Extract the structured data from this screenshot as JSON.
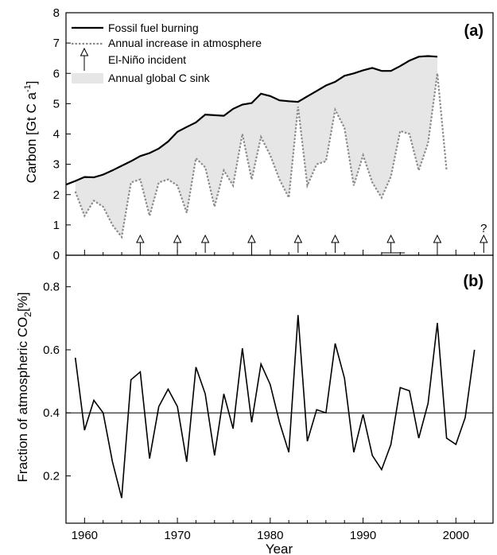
{
  "chart_data": [
    {
      "panel": "(a)",
      "type": "line",
      "ylabel_main": "Carbon [Gt C a",
      "ylabel_sup": "-1",
      "ylabel_end": "]",
      "xlim": [
        1958,
        2004
      ],
      "ylim": [
        0,
        8
      ],
      "yticks": [
        "0",
        "1",
        "2",
        "3",
        "4",
        "5",
        "6",
        "7",
        "8"
      ],
      "grid": false,
      "legend_position": "top-left",
      "legend": {
        "fossil": "Fossil fuel burning",
        "annual": "Annual increase in atmosphere",
        "elnino": "El-Niño incident",
        "sink": "Annual global C sink"
      },
      "colors": {
        "fossil": "#000000",
        "annual": "#8c8c8c",
        "sink": "#e6e6e6"
      },
      "series": [
        {
          "name": "Fossil fuel burning",
          "x": [
            1958,
            1959,
            1960,
            1961,
            1962,
            1963,
            1964,
            1965,
            1966,
            1967,
            1968,
            1969,
            1970,
            1971,
            1972,
            1973,
            1974,
            1975,
            1976,
            1977,
            1978,
            1979,
            1980,
            1981,
            1982,
            1983,
            1984,
            1985,
            1986,
            1987,
            1988,
            1989,
            1990,
            1991,
            1992,
            1993,
            1994,
            1995,
            1996,
            1997,
            1998
          ],
          "y": [
            2.33,
            2.45,
            2.58,
            2.57,
            2.66,
            2.8,
            2.95,
            3.1,
            3.27,
            3.37,
            3.52,
            3.75,
            4.07,
            4.23,
            4.38,
            4.64,
            4.62,
            4.6,
            4.83,
            4.97,
            5.02,
            5.33,
            5.25,
            5.11,
            5.08,
            5.06,
            5.24,
            5.42,
            5.6,
            5.72,
            5.92,
            6.0,
            6.1,
            6.18,
            6.08,
            6.08,
            6.24,
            6.42,
            6.55,
            6.57,
            6.55
          ]
        },
        {
          "name": "Annual increase in atmosphere",
          "x": [
            1959,
            1960,
            1961,
            1962,
            1963,
            1964,
            1965,
            1966,
            1967,
            1968,
            1969,
            1970,
            1971,
            1972,
            1973,
            1974,
            1975,
            1976,
            1977,
            1978,
            1979,
            1980,
            1981,
            1982,
            1983,
            1984,
            1985,
            1986,
            1987,
            1988,
            1989,
            1990,
            1991,
            1992,
            1993,
            1994,
            1995,
            1996,
            1997,
            1998,
            1999
          ],
          "y": [
            2.1,
            1.3,
            1.8,
            1.6,
            1.0,
            0.6,
            2.4,
            2.5,
            1.3,
            2.4,
            2.5,
            2.3,
            1.4,
            3.2,
            2.9,
            1.6,
            2.8,
            2.3,
            4.0,
            2.5,
            3.9,
            3.3,
            2.5,
            1.9,
            4.9,
            2.3,
            3.0,
            3.1,
            4.8,
            4.2,
            2.3,
            3.3,
            2.4,
            1.9,
            2.6,
            4.1,
            4.0,
            2.8,
            3.7,
            6.0,
            2.8
          ]
        }
      ],
      "elnino_years": [
        1966,
        1970,
        1973,
        1978,
        1983,
        1987,
        1993,
        1998,
        2003
      ],
      "elnino_span": [
        1992,
        1994.5
      ],
      "uncertain_marker": "?"
    },
    {
      "panel": "(b)",
      "type": "line",
      "ylabel_main": "Fraction of atmospheric CO",
      "ylabel_sub": "2",
      "ylabel_end": "[%]",
      "xlabel": "Year",
      "xlim": [
        1958,
        2004
      ],
      "ylim": [
        0.05,
        0.9
      ],
      "yticks": [
        "0.2",
        "0.4",
        "0.6",
        "0.8"
      ],
      "xticks": [
        "1960",
        "1970",
        "1980",
        "1990",
        "2000"
      ],
      "grid": false,
      "reference_line": 0.4,
      "series": [
        {
          "x": [
            1959,
            1960,
            1961,
            1962,
            1963,
            1964,
            1965,
            1966,
            1967,
            1968,
            1969,
            1970,
            1971,
            1972,
            1973,
            1974,
            1975,
            1976,
            1977,
            1978,
            1979,
            1980,
            1981,
            1982,
            1983,
            1984,
            1985,
            1986,
            1987,
            1988,
            1989,
            1990,
            1991,
            1992,
            1993,
            1994,
            1995,
            1996,
            1997,
            1998,
            1999,
            2000,
            2001,
            2002
          ],
          "y": [
            0.575,
            0.345,
            0.44,
            0.4,
            0.245,
            0.13,
            0.505,
            0.53,
            0.255,
            0.42,
            0.475,
            0.42,
            0.245,
            0.545,
            0.46,
            0.265,
            0.46,
            0.35,
            0.605,
            0.37,
            0.555,
            0.49,
            0.37,
            0.275,
            0.71,
            0.31,
            0.41,
            0.4,
            0.62,
            0.51,
            0.275,
            0.395,
            0.265,
            0.22,
            0.3,
            0.48,
            0.47,
            0.32,
            0.43,
            0.685,
            0.32,
            0.3,
            0.385,
            0.6
          ]
        }
      ]
    }
  ]
}
